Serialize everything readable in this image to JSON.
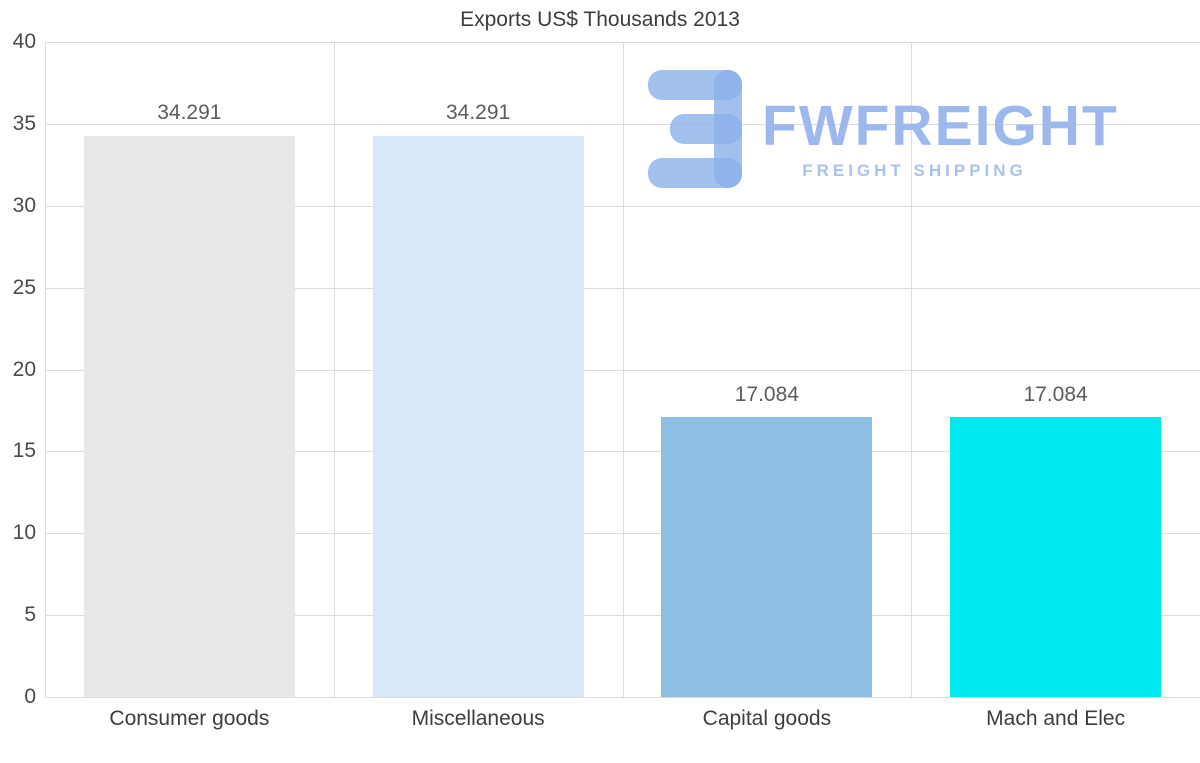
{
  "title": "Exports US$ Thousands 2013",
  "watermark": {
    "brand": "FWFREIGHT",
    "tagline": "FREIGHT SHIPPING",
    "glyph_color": "#8bb0ea"
  },
  "colors": {
    "grid": "#dcdcdc",
    "title_text": "#3d3d3d",
    "tick_text": "#4a4a4a",
    "value_text": "#5c5c5c"
  },
  "chart_data": {
    "type": "bar",
    "title": "Exports US$ Thousands 2013",
    "categories": [
      "Consumer goods",
      "Miscellaneous",
      "Capital goods",
      "Mach and Elec"
    ],
    "values": [
      34.291,
      34.291,
      17.084,
      17.084
    ],
    "value_labels": [
      "34.291",
      "34.291",
      "17.084",
      "17.084"
    ],
    "bar_colors": [
      "#e8e8e8",
      "#d8e8fa",
      "#8fbfe3",
      "#00e9f1"
    ],
    "xlabel": "",
    "ylabel": "",
    "ylim": [
      0,
      40
    ],
    "yticks": [
      0,
      5,
      10,
      15,
      20,
      25,
      30,
      35,
      40
    ],
    "grid": true,
    "legend": false
  }
}
